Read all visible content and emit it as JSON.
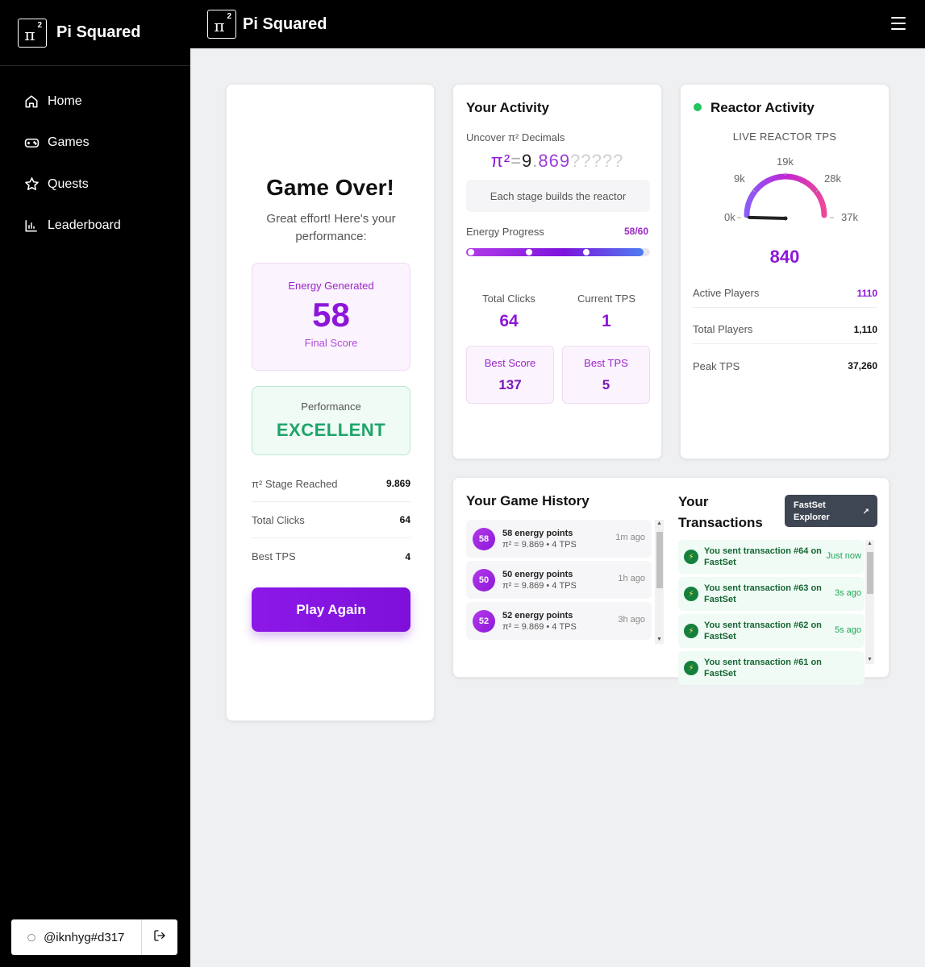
{
  "brand": {
    "name": "Pi Squared",
    "logo_symbol": "π",
    "logo_sup": "2"
  },
  "sidebar": {
    "items": [
      {
        "label": "Home",
        "icon": "home-icon"
      },
      {
        "label": "Games",
        "icon": "gamepad-icon"
      },
      {
        "label": "Quests",
        "icon": "star-icon"
      },
      {
        "label": "Leaderboard",
        "icon": "bar-chart-icon"
      }
    ],
    "user": {
      "handle": "@iknhyg#d317",
      "icon": "user-icon",
      "logout_icon": "logout-icon"
    }
  },
  "game_over": {
    "title": "Game Over!",
    "subtitle": "Great effort! Here's your performance:",
    "energy": {
      "label": "Energy Generated",
      "value": "58",
      "footer": "Final Score"
    },
    "performance": {
      "label": "Performance",
      "value": "EXCELLENT"
    },
    "rows": [
      {
        "label": "π² Stage Reached",
        "value": "9.869"
      },
      {
        "label": "Total Clicks",
        "value": "64"
      },
      {
        "label": "Best TPS",
        "value": "4"
      }
    ],
    "play_again": "Play Again"
  },
  "activity": {
    "title": "Your Activity",
    "uncover_label": "Uncover π² Decimals",
    "pi": {
      "symbol": "π²",
      "eq": "=",
      "whole": "9",
      "dot": ".",
      "digits": "869",
      "unknown": "?????"
    },
    "stage_note": "Each stage builds the reactor",
    "energy_progress": {
      "label": "Energy Progress",
      "value_text": "58/60",
      "current": 58,
      "max": 60
    },
    "total_clicks": {
      "label": "Total Clicks",
      "value": "64"
    },
    "current_tps": {
      "label": "Current TPS",
      "value": "1"
    },
    "best_score": {
      "label": "Best Score",
      "value": "137"
    },
    "best_tps": {
      "label": "Best TPS",
      "value": "5"
    }
  },
  "reactor": {
    "title": "Reactor Activity",
    "subtitle": "LIVE REACTOR TPS",
    "gauge": {
      "ticks": [
        "0k",
        "9k",
        "19k",
        "28k",
        "37k"
      ],
      "value": 840,
      "max": 37260
    },
    "value": "840",
    "rows": [
      {
        "label": "Active Players",
        "value": "1110"
      },
      {
        "label": "Total Players",
        "value": "1,110"
      },
      {
        "label": "Peak TPS",
        "value": "37,260"
      }
    ],
    "colors": {
      "live": "#22c55e",
      "accent": "#8d17d9"
    }
  },
  "history": {
    "title": "Your Game History",
    "items": [
      {
        "badge": "58",
        "title": "58 energy points",
        "detail": "π² = 9.869 • 4 TPS",
        "time": "1m ago"
      },
      {
        "badge": "50",
        "title": "50 energy points",
        "detail": "π² = 9.869 • 4 TPS",
        "time": "1h ago"
      },
      {
        "badge": "52",
        "title": "52 energy points",
        "detail": "π² = 9.869 • 4 TPS",
        "time": "3h ago"
      }
    ]
  },
  "transactions": {
    "title": "Your Transactions",
    "explorer_button": "FastSet Explorer",
    "items": [
      {
        "text": "You sent transaction #64 on FastSet",
        "time": "Just now"
      },
      {
        "text": "You sent transaction #63 on FastSet",
        "time": "3s ago"
      },
      {
        "text": "You sent transaction #62 on FastSet",
        "time": "5s ago"
      },
      {
        "text": "You sent transaction #61 on FastSet",
        "time": ""
      }
    ]
  }
}
